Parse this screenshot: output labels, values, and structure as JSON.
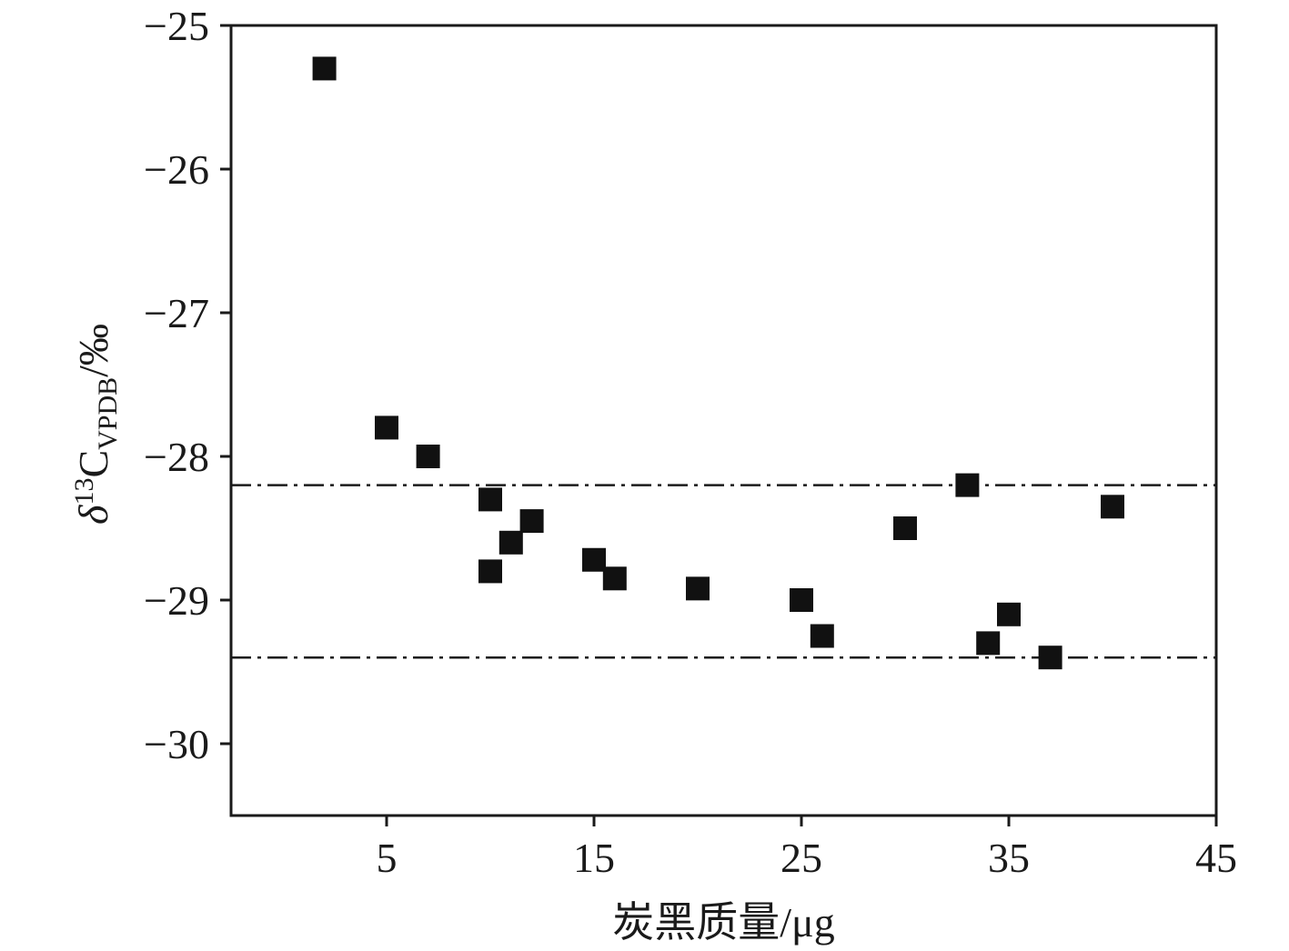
{
  "chart_data": {
    "type": "scatter",
    "xlabel": "炭黑质量/μg",
    "ylabel": {
      "delta": "δ",
      "superscript": "13",
      "element": "C",
      "subscript": "VPDB",
      "unit": "/‰"
    },
    "xlim": [
      -2.5,
      45
    ],
    "ylim": [
      -30.5,
      -25
    ],
    "xticks": [
      5,
      15,
      25,
      35,
      45
    ],
    "yticks": [
      -25,
      -26,
      -27,
      -28,
      -29,
      -30
    ],
    "ytick_labels": [
      "−25",
      "−26",
      "−27",
      "−28",
      "−29",
      "−30"
    ],
    "grid": false,
    "legend": "none",
    "marker": "square",
    "marker_color": "#111111",
    "reference_lines": [
      {
        "y": -28.2,
        "style": "dash-dot"
      },
      {
        "y": -29.4,
        "style": "dash-dot"
      }
    ],
    "points": [
      {
        "x": 2,
        "y": -25.3
      },
      {
        "x": 5,
        "y": -27.8
      },
      {
        "x": 7,
        "y": -28.0
      },
      {
        "x": 10,
        "y": -28.3
      },
      {
        "x": 10,
        "y": -28.8
      },
      {
        "x": 11,
        "y": -28.6
      },
      {
        "x": 12,
        "y": -28.45
      },
      {
        "x": 15,
        "y": -28.72
      },
      {
        "x": 16,
        "y": -28.85
      },
      {
        "x": 20,
        "y": -28.92
      },
      {
        "x": 25,
        "y": -29.0
      },
      {
        "x": 26,
        "y": -29.25
      },
      {
        "x": 30,
        "y": -28.5
      },
      {
        "x": 33,
        "y": -28.2
      },
      {
        "x": 34,
        "y": -29.3
      },
      {
        "x": 35,
        "y": -29.1
      },
      {
        "x": 37,
        "y": -29.4
      },
      {
        "x": 40,
        "y": -28.35
      }
    ]
  }
}
